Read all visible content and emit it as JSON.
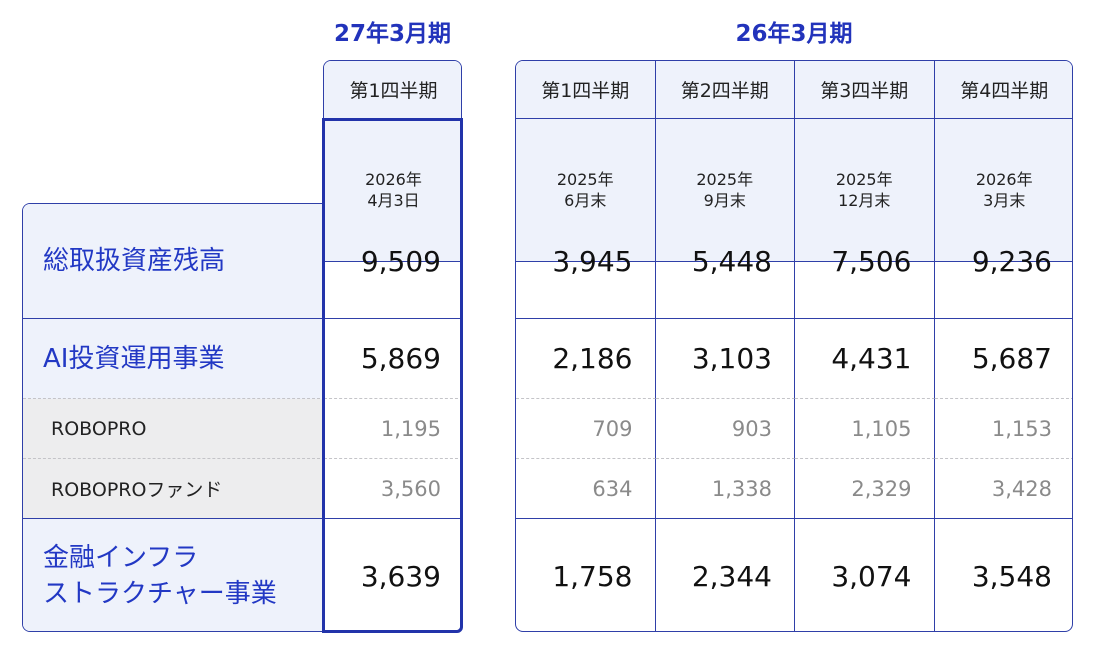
{
  "periods": [
    {
      "title": "27年3月期",
      "columns": [
        {
          "quarter": "第1四半期",
          "date": [
            "2026年",
            "4月3日"
          ]
        }
      ]
    },
    {
      "title": "26年3月期",
      "columns": [
        {
          "quarter": "第1四半期",
          "date": [
            "2025年",
            "6月末"
          ]
        },
        {
          "quarter": "第2四半期",
          "date": [
            "2025年",
            "9月末"
          ]
        },
        {
          "quarter": "第3四半期",
          "date": [
            "2025年",
            "12月末"
          ]
        },
        {
          "quarter": "第4四半期",
          "date": [
            "2026年",
            "3月末"
          ]
        }
      ]
    }
  ],
  "rows": [
    {
      "label": [
        "総取扱資産残高"
      ],
      "values": [
        [
          "9,509"
        ],
        [
          "3,945",
          "5,448",
          "7,506",
          "9,236"
        ]
      ]
    },
    {
      "label": [
        "AI投資運用事業"
      ],
      "values": [
        [
          "5,869"
        ],
        [
          "2,186",
          "3,103",
          "4,431",
          "5,687"
        ]
      ]
    },
    {
      "label": [
        "ROBOPRO"
      ],
      "values": [
        [
          "1,195"
        ],
        [
          "709",
          "903",
          "1,105",
          "1,153"
        ]
      ]
    },
    {
      "label": [
        "ROBOPROファンド"
      ],
      "values": [
        [
          "3,560"
        ],
        [
          "634",
          "1,338",
          "2,329",
          "3,428"
        ]
      ]
    },
    {
      "label": [
        "金融インフラ",
        "ストラクチャー事業"
      ],
      "values": [
        [
          "3,639"
        ],
        [
          "1,758",
          "2,344",
          "3,074",
          "3,548"
        ]
      ]
    }
  ]
}
